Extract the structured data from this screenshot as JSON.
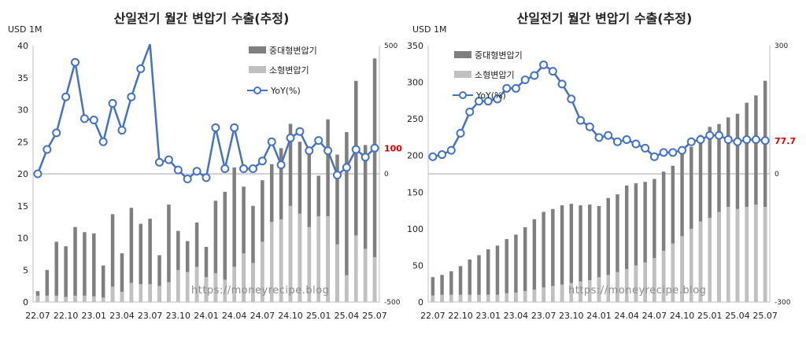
{
  "watermark": "https://moneyrecipe.blog",
  "colors": {
    "large": "#7f7f7f",
    "small": "#c0c0c0",
    "yoy": "#4472c4",
    "label": "#e00000"
  },
  "chart_data": [
    {
      "type": "bar",
      "title": "산일전기 월간 변압기 수출(추정)",
      "ylabel": "USD 1M",
      "ylim": [
        0,
        40
      ],
      "y_ticks": [
        0,
        5,
        10,
        15,
        20,
        25,
        30,
        35,
        40
      ],
      "y2lim": [
        -500,
        500
      ],
      "y2_ticks": [
        -500,
        0,
        500
      ],
      "x_tick_labels": [
        "22.07",
        "22.10",
        "23.01",
        "23.04",
        "23.07",
        "23.10",
        "24.01",
        "24.04",
        "24.07",
        "24.10",
        "25.01",
        "25.04",
        "25.07"
      ],
      "legend_placement": "top-right",
      "legend": [
        "중대형변압기",
        "소형변압기",
        "YoY(%)"
      ],
      "end_label": "100.3",
      "categories": [
        "22.07",
        "22.08",
        "22.09",
        "22.10",
        "22.11",
        "22.12",
        "23.01",
        "23.02",
        "23.03",
        "23.04",
        "23.05",
        "23.06",
        "23.07",
        "23.08",
        "23.09",
        "23.10",
        "23.11",
        "23.12",
        "24.01",
        "24.02",
        "24.03",
        "24.04",
        "24.05",
        "24.06",
        "24.07",
        "24.08",
        "24.09",
        "24.10",
        "24.11",
        "24.12",
        "25.01",
        "25.02",
        "25.03",
        "25.04",
        "25.05",
        "25.06",
        "25.07"
      ],
      "series": [
        {
          "name": "중대형변압기",
          "kind": "bar",
          "values": [
            1.7,
            5.0,
            9.4,
            8.7,
            11.7,
            10.9,
            10.7,
            5.7,
            13.7,
            7.6,
            14.7,
            12.2,
            13.0,
            7.3,
            15.2,
            11.1,
            9.5,
            12.4,
            8.6,
            15.8,
            17.2,
            21.0,
            18.0,
            15.0,
            19.0,
            21.5,
            24.0,
            27.8,
            25.0,
            23.5,
            19.7,
            28.5,
            23.0,
            26.5,
            34.5,
            24.5,
            38.0
          ]
        },
        {
          "name": "소형변압기",
          "kind": "bar",
          "values": [
            1.0,
            1.0,
            1.0,
            0.8,
            1.0,
            1.0,
            0.9,
            0.7,
            2.4,
            1.6,
            3.0,
            2.8,
            2.8,
            2.5,
            3.1,
            5.0,
            4.7,
            5.5,
            3.9,
            4.5,
            3.5,
            5.5,
            7.6,
            6.1,
            9.4,
            12.5,
            12.9,
            15.0,
            13.8,
            11.7,
            13.4,
            13.4,
            9.0,
            4.2,
            10.4,
            8.3,
            7.0
          ]
        },
        {
          "name": "YoY(%)",
          "kind": "line",
          "axis": "right",
          "values": [
            0,
            95,
            160,
            300,
            435,
            215,
            210,
            125,
            275,
            170,
            300,
            410,
            505,
            45,
            55,
            15,
            -20,
            10,
            -15,
            180,
            20,
            180,
            20,
            20,
            50,
            125,
            35,
            140,
            165,
            90,
            130,
            90,
            -5,
            25,
            95,
            65,
            100.3
          ]
        }
      ]
    },
    {
      "type": "bar",
      "title": "산일전기 월간 변압기 수출(추정)",
      "ylabel": "USD 1M",
      "ylim": [
        0,
        350
      ],
      "y_ticks": [
        0,
        50,
        100,
        150,
        200,
        250,
        300,
        350
      ],
      "y2lim": [
        -300,
        300
      ],
      "y2_ticks": [
        -300,
        0,
        300
      ],
      "x_tick_labels": [
        "22.07",
        "22.10",
        "23.01",
        "23.04",
        "23.07",
        "23.10",
        "24.01",
        "24.04",
        "24.07",
        "24.10",
        "25.01",
        "25.04",
        "25.07"
      ],
      "legend_placement": "top-left",
      "legend": [
        "중대형변압기",
        "소형변압기",
        "YoY(%)"
      ],
      "end_label": "77.7",
      "categories": [
        "22.07",
        "22.08",
        "22.09",
        "22.10",
        "22.11",
        "22.12",
        "23.01",
        "23.02",
        "23.03",
        "23.04",
        "23.05",
        "23.06",
        "23.07",
        "23.08",
        "23.09",
        "23.10",
        "23.11",
        "23.12",
        "24.01",
        "24.02",
        "24.03",
        "24.04",
        "24.05",
        "24.06",
        "24.07",
        "24.08",
        "24.09",
        "24.10",
        "24.11",
        "24.12",
        "25.01",
        "25.02",
        "25.03",
        "25.04",
        "25.05",
        "25.06",
        "25.07"
      ],
      "series": [
        {
          "name": "중대형변압기",
          "kind": "bar",
          "values": [
            34,
            37,
            42,
            49,
            58,
            64,
            72,
            77,
            86,
            92,
            102,
            113,
            123,
            127,
            132,
            134,
            132,
            133,
            131,
            142,
            147,
            159,
            162,
            164,
            168,
            178,
            186,
            203,
            212,
            228,
            239,
            243,
            252,
            257,
            272,
            282,
            302
          ]
        },
        {
          "name": "소형변압기",
          "kind": "bar",
          "values": [
            9,
            10,
            10,
            10,
            10,
            10,
            10,
            10,
            12,
            13,
            15,
            17,
            20,
            22,
            24,
            26,
            28,
            30,
            34,
            37,
            41,
            45,
            50,
            54,
            60,
            70,
            80,
            90,
            100,
            110,
            115,
            123,
            130,
            127,
            130,
            133,
            130
          ]
        },
        {
          "name": "YoY(%)",
          "kind": "line",
          "axis": "right",
          "values": [
            40,
            45,
            55,
            95,
            145,
            170,
            170,
            175,
            200,
            200,
            220,
            230,
            255,
            240,
            210,
            175,
            125,
            110,
            85,
            90,
            75,
            80,
            70,
            60,
            40,
            50,
            50,
            55,
            75,
            80,
            90,
            90,
            80,
            75,
            80,
            80,
            77.7
          ]
        }
      ]
    }
  ]
}
